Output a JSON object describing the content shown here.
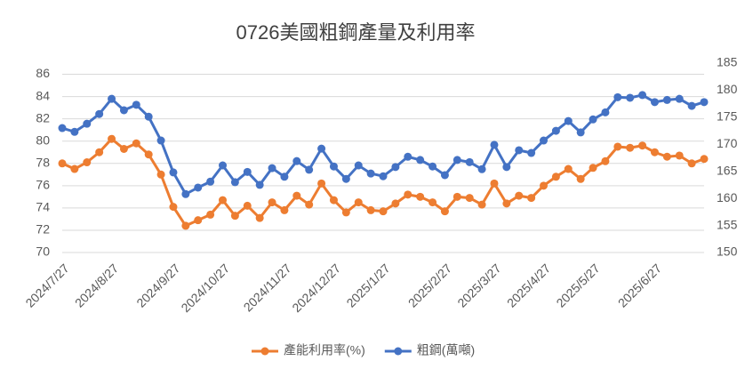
{
  "chart_data": {
    "type": "line",
    "title": "0726美國粗鋼產量及利用率",
    "categories": [
      "2024/7/27",
      null,
      null,
      null,
      "2024/8/27",
      null,
      null,
      null,
      null,
      "2024/9/27",
      null,
      null,
      null,
      "2024/10/27",
      null,
      null,
      null,
      null,
      "2024/11/27",
      null,
      null,
      null,
      "2024/12/27",
      null,
      null,
      null,
      "2025/1/27",
      null,
      null,
      null,
      null,
      "2025/2/27",
      null,
      null,
      null,
      "2025/3/27",
      null,
      null,
      null,
      "2025/4/27",
      null,
      null,
      null,
      "2025/5/27",
      null,
      null,
      null,
      null,
      "2025/6/27",
      null,
      null,
      null,
      null
    ],
    "series": [
      {
        "name": "產能利用率(%)",
        "color": "#ed7d31",
        "axis": "y",
        "values": [
          78.0,
          77.5,
          78.1,
          79.0,
          80.2,
          79.3,
          79.8,
          78.8,
          77.0,
          74.1,
          72.4,
          72.9,
          73.4,
          74.7,
          73.3,
          74.2,
          73.1,
          74.5,
          73.8,
          75.1,
          74.3,
          76.2,
          74.7,
          73.6,
          74.5,
          73.8,
          73.7,
          74.4,
          75.2,
          75.0,
          74.5,
          73.7,
          75.0,
          74.9,
          74.3,
          76.2,
          74.4,
          75.1,
          74.9,
          76.0,
          76.8,
          77.5,
          76.6,
          77.6,
          78.2,
          79.5,
          79.4,
          79.6,
          79.0,
          78.6,
          78.7,
          78.0,
          78.4
        ]
      },
      {
        "name": "粗鋼(萬噸)",
        "color": "#4472c4",
        "axis": "y2",
        "values": [
          173.0,
          172.3,
          173.8,
          175.6,
          178.4,
          176.3,
          177.3,
          175.1,
          170.7,
          164.8,
          160.8,
          162.0,
          163.1,
          166.1,
          163.0,
          164.9,
          162.5,
          165.6,
          164.0,
          166.9,
          165.3,
          169.2,
          165.9,
          163.6,
          166.1,
          164.6,
          164.1,
          165.8,
          167.7,
          167.1,
          165.9,
          164.3,
          167.1,
          166.7,
          165.4,
          169.9,
          165.8,
          168.9,
          168.4,
          170.7,
          172.5,
          174.3,
          172.2,
          174.6,
          175.9,
          178.7,
          178.6,
          179.1,
          177.8,
          178.2,
          178.4,
          177.1,
          177.8
        ]
      }
    ],
    "ylim": [
      70,
      87
    ],
    "yticks": [
      70,
      72,
      74,
      76,
      78,
      80,
      82,
      84,
      86
    ],
    "y2lim": [
      150,
      185
    ],
    "y2ticks": [
      150,
      155,
      160,
      165,
      170,
      175,
      180,
      185
    ],
    "grid": true,
    "legend": "bottom"
  }
}
